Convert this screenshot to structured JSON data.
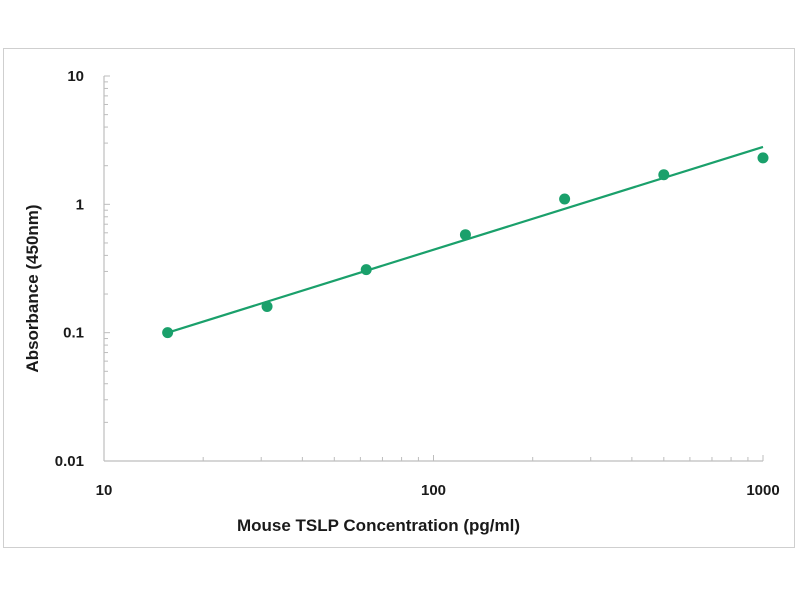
{
  "chart_data": {
    "type": "scatter",
    "title": "",
    "xlabel": "Mouse TSLP Concentration (pg/ml)",
    "ylabel": "Absorbance (450nm)",
    "xscale": "log",
    "yscale": "log",
    "xlim": [
      10,
      1000
    ],
    "ylim": [
      0.01,
      10
    ],
    "x_ticks": [
      10,
      100,
      1000
    ],
    "x_tick_labels": [
      "10",
      "100",
      "1000"
    ],
    "y_ticks": [
      0.01,
      0.1,
      1,
      10
    ],
    "y_tick_labels": [
      "0.01",
      "0.1",
      "1",
      "10"
    ],
    "grid": false,
    "legend": "none",
    "colors": {
      "series": "#1aa06b",
      "axis": "#bdbdbd",
      "text": "#1a1a1a"
    },
    "series": [
      {
        "x": [
          15.6,
          31.25,
          62.5,
          125,
          250,
          500,
          1000
        ],
        "y": [
          0.1,
          0.16,
          0.31,
          0.58,
          1.1,
          1.7,
          2.3
        ]
      }
    ],
    "trendline": {
      "x": [
        15.6,
        1000
      ],
      "y": [
        0.1,
        2.8
      ]
    }
  }
}
